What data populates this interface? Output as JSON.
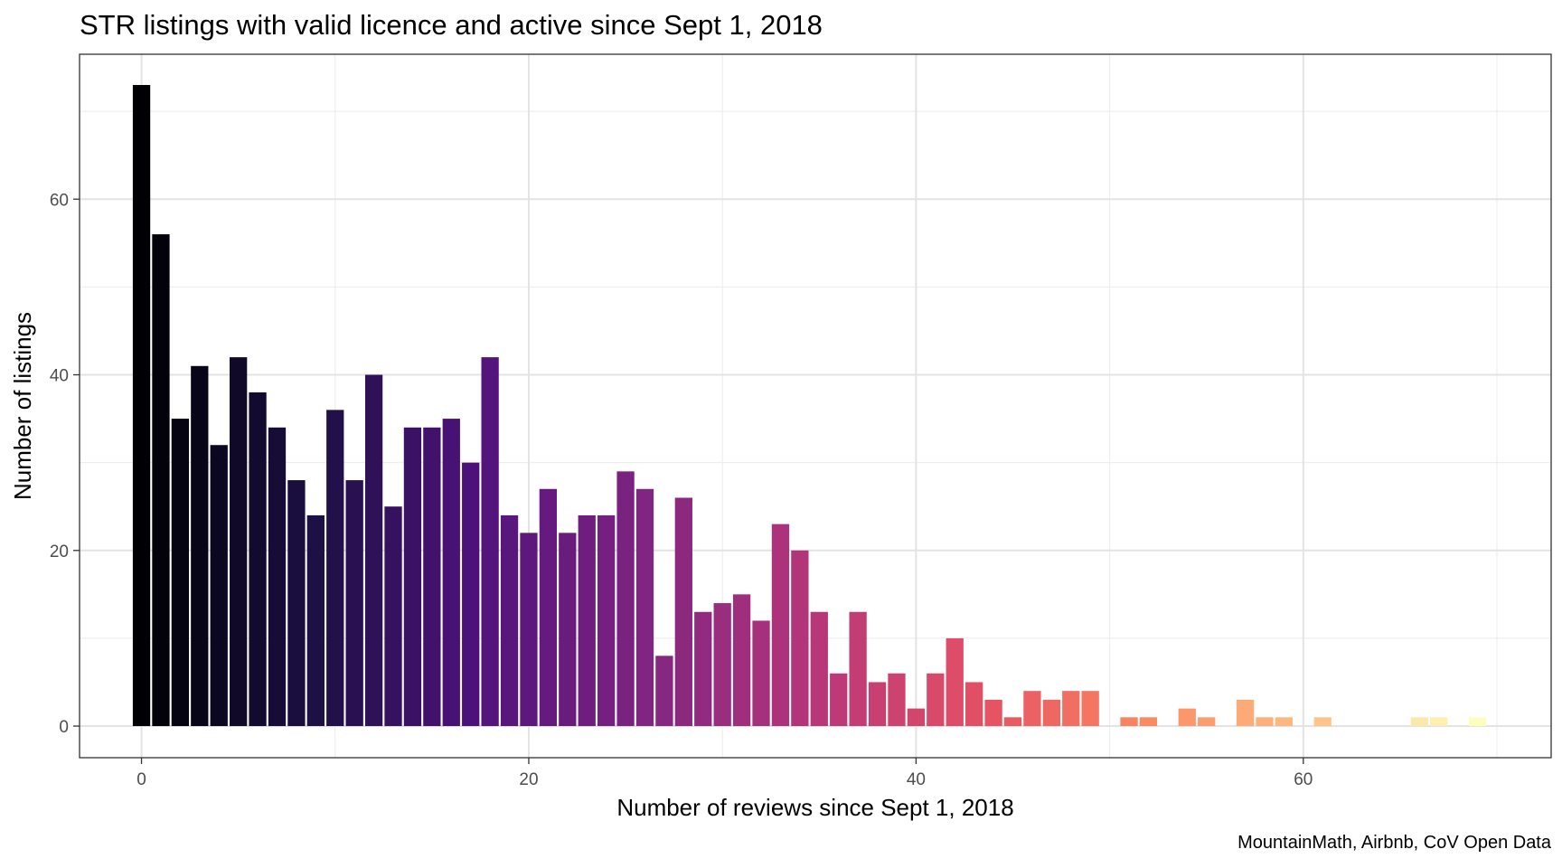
{
  "chart_data": {
    "type": "bar",
    "title": "STR listings with valid licence and active since Sept 1, 2018",
    "xlabel": "Number of reviews since Sept 1, 2018",
    "ylabel": "Number of listings",
    "caption": "MountainMath, Airbnb, CoV Open Data",
    "xlim": [
      -3.2,
      72.8
    ],
    "ylim": [
      -3.6,
      76.5
    ],
    "x_ticks": [
      0,
      20,
      40,
      60
    ],
    "x_tick_labels": [
      "0",
      "20",
      "40",
      "60"
    ],
    "y_ticks": [
      0,
      20,
      40,
      60
    ],
    "y_tick_labels": [
      "0",
      "20",
      "40",
      "60"
    ],
    "grid": true,
    "legend": "none",
    "color_scale": "magma",
    "x": [
      0,
      1,
      2,
      3,
      4,
      5,
      6,
      7,
      8,
      9,
      10,
      11,
      12,
      13,
      14,
      15,
      16,
      17,
      18,
      19,
      20,
      21,
      22,
      23,
      24,
      25,
      26,
      27,
      28,
      29,
      30,
      31,
      32,
      33,
      34,
      35,
      36,
      37,
      38,
      39,
      40,
      41,
      42,
      43,
      44,
      45,
      46,
      47,
      48,
      49,
      51,
      52,
      54,
      55,
      57,
      58,
      59,
      61,
      66,
      67,
      69
    ],
    "values": [
      73,
      56,
      35,
      41,
      32,
      42,
      38,
      34,
      28,
      24,
      36,
      28,
      40,
      25,
      34,
      34,
      35,
      30,
      42,
      24,
      22,
      27,
      22,
      24,
      24,
      29,
      27,
      8,
      26,
      13,
      14,
      15,
      12,
      23,
      20,
      13,
      6,
      13,
      5,
      6,
      2,
      6,
      10,
      5,
      3,
      1,
      4,
      3,
      4,
      4,
      1,
      1,
      2,
      1,
      3,
      1,
      1,
      1,
      1,
      1,
      1
    ]
  }
}
